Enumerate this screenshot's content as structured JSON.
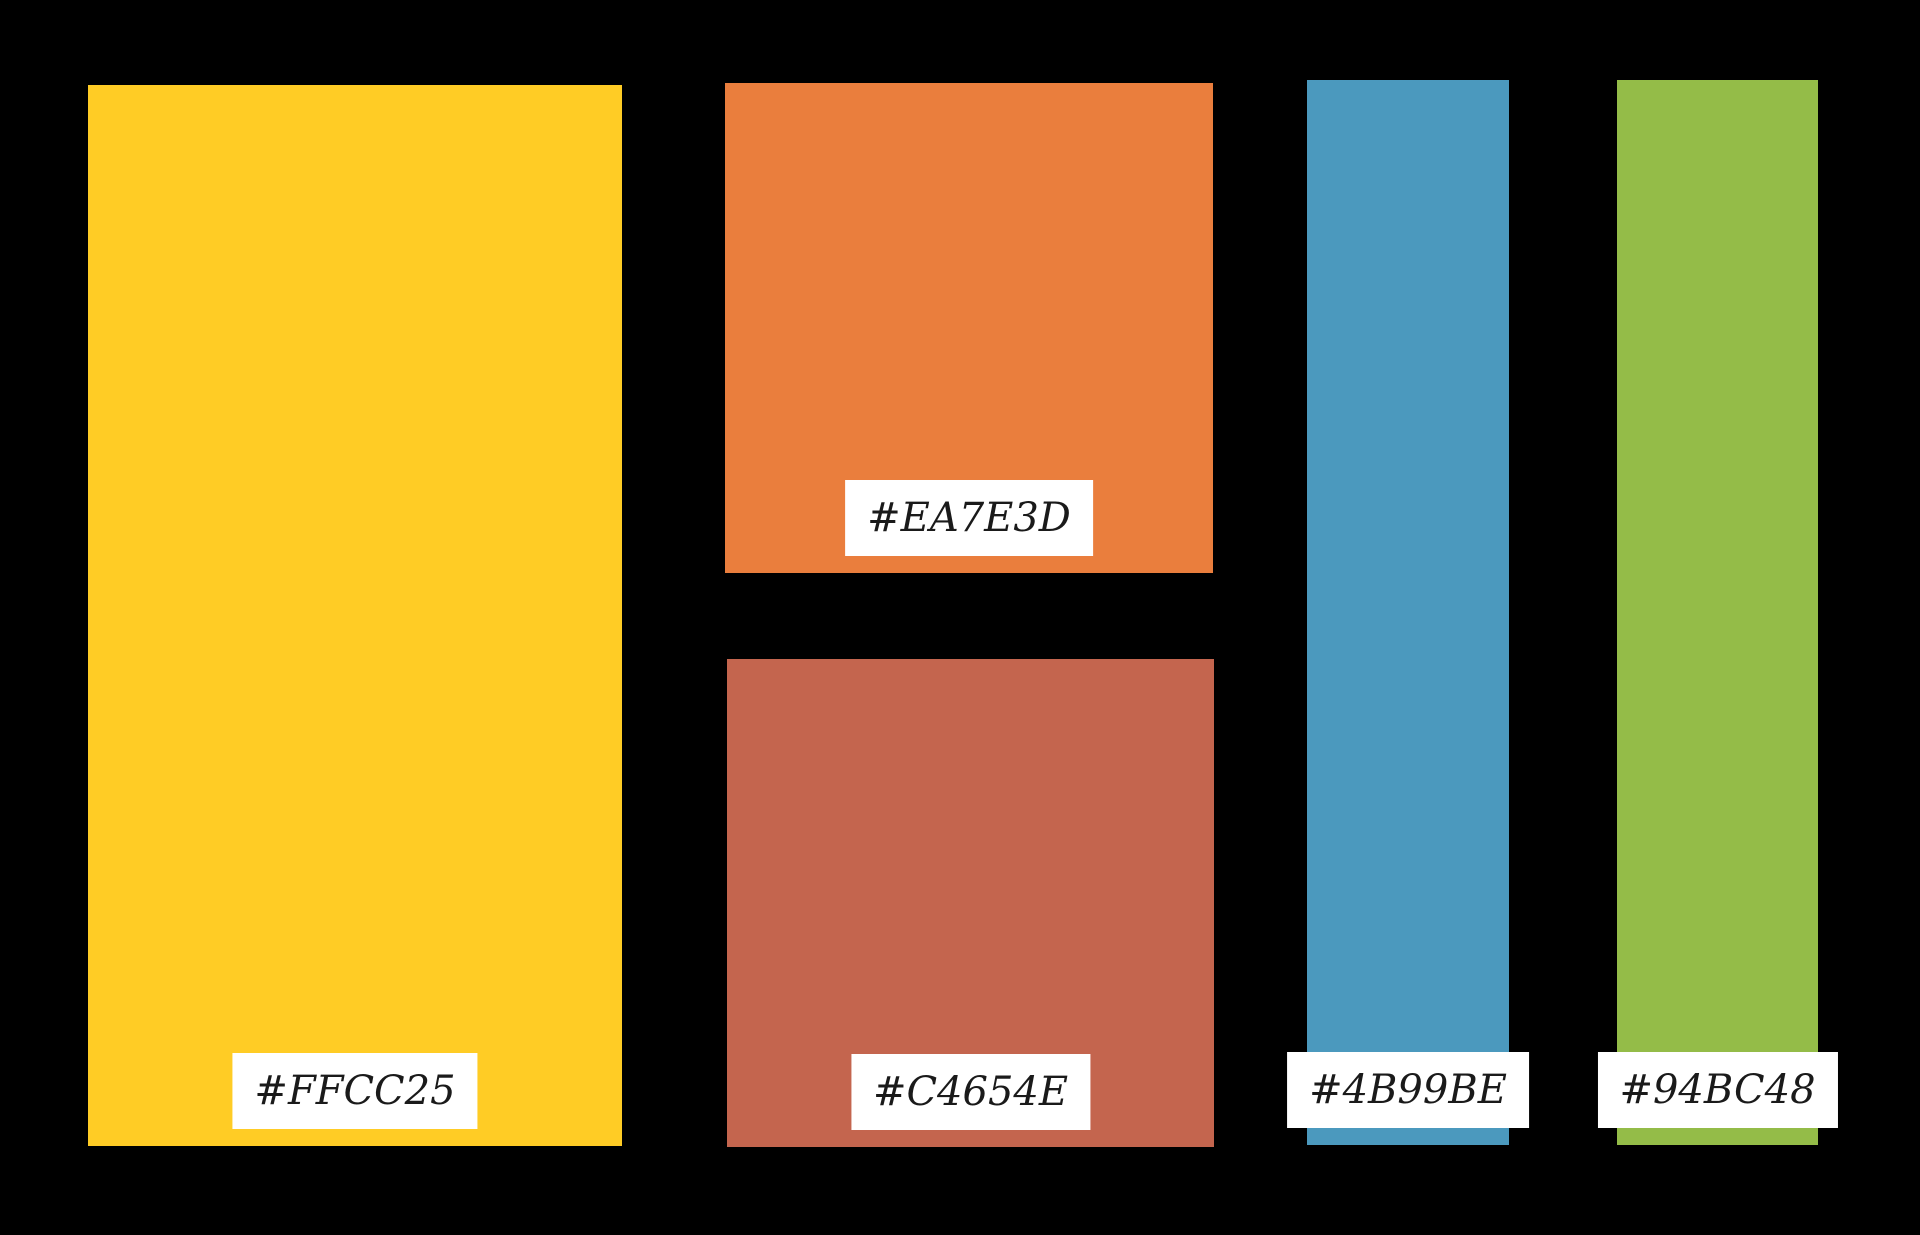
{
  "background_color": "#000000",
  "palette": {
    "label_background": "#FFFFFF",
    "label_text_color": "#1A1A1A",
    "swatches": [
      {
        "name": "yellow",
        "hex": "#FFCC25",
        "label": "#FFCC25"
      },
      {
        "name": "orange",
        "hex": "#EA7E3D",
        "label": "#EA7E3D"
      },
      {
        "name": "rust",
        "hex": "#C4654E",
        "label": "#C4654E"
      },
      {
        "name": "blue",
        "hex": "#4B99BE",
        "label": "#4B99BE"
      },
      {
        "name": "green",
        "hex": "#94BC48",
        "label": "#94BC48"
      }
    ]
  }
}
